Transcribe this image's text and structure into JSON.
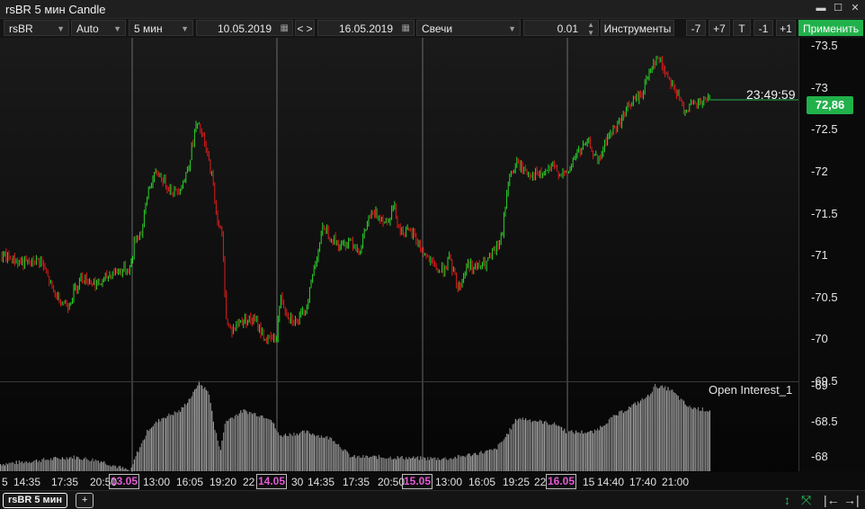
{
  "window": {
    "title": "rsBR 5 мин Candle",
    "buttons": [
      "▬",
      "☐",
      "✕"
    ]
  },
  "toolbar": {
    "instrument": "rsBR",
    "scale": "Auto",
    "timeframe": "5 мин",
    "date_from": "10.05.2019",
    "nav_prev": "<",
    "nav_next": ">",
    "date_to": "16.05.2019",
    "chart_type": "Свечи",
    "step": "0.01",
    "instruments_label": "Инструменты",
    "btn_m7": "-7",
    "btn_p7": "+7",
    "btn_t": "T",
    "btn_m1": "-1",
    "btn_p1": "+1",
    "apply_label": "Применить"
  },
  "overlay": {
    "last_price": "72,86",
    "timer": "23:49:59",
    "oi_label": "Open Interest_1"
  },
  "colors": {
    "up": "#2bd62b",
    "down": "#e21b1b",
    "badge": "#21b14b",
    "date_marker": "#e25ad6"
  },
  "tabs": {
    "active": "rsBR 5 мин",
    "add": "+"
  },
  "chart_data": {
    "type": "candlestick",
    "title": "rsBR 5 мин Candle",
    "y_ticks_price": [
      "-73.5",
      "-73",
      "-72.5",
      "-72",
      "-71.5",
      "-71",
      "-70.5",
      "-70",
      "-69.5",
      "-69",
      "-68.5",
      "-68"
    ],
    "price_ylim": [
      69.5,
      73.6
    ],
    "last_price": 72.86,
    "x_tick_labels": [
      {
        "text": "5",
        "date": false
      },
      {
        "text": "14:35",
        "date": false
      },
      {
        "text": "17:35",
        "date": false
      },
      {
        "text": "20:50",
        "date": false
      },
      {
        "text": "13.05",
        "date": true
      },
      {
        "text": "13:00",
        "date": false
      },
      {
        "text": "16:05",
        "date": false
      },
      {
        "text": "19:20",
        "date": false
      },
      {
        "text": "22",
        "date": false
      },
      {
        "text": "14.05",
        "date": true
      },
      {
        "text": "30",
        "date": false
      },
      {
        "text": "14:35",
        "date": false
      },
      {
        "text": "17:35",
        "date": false
      },
      {
        "text": "20:50",
        "date": false
      },
      {
        "text": "15.05",
        "date": true
      },
      {
        "text": "13:00",
        "date": false
      },
      {
        "text": "16:05",
        "date": false
      },
      {
        "text": "19:25",
        "date": false
      },
      {
        "text": "22",
        "date": false
      },
      {
        "text": "16.05",
        "date": true
      },
      {
        "text": "15",
        "date": false
      },
      {
        "text": "14:40",
        "date": false
      },
      {
        "text": "17:40",
        "date": false
      },
      {
        "text": "21:00",
        "date": false
      }
    ],
    "price_path": [
      [
        0,
        71.0
      ],
      [
        30,
        70.9
      ],
      [
        45,
        70.95
      ],
      [
        60,
        70.55
      ],
      [
        75,
        70.4
      ],
      [
        90,
        70.75
      ],
      [
        110,
        70.65
      ],
      [
        125,
        70.8
      ],
      [
        145,
        70.85
      ],
      [
        150,
        71.2
      ],
      [
        158,
        71.3
      ],
      [
        165,
        71.8
      ],
      [
        175,
        72.0
      ],
      [
        185,
        71.85
      ],
      [
        195,
        71.75
      ],
      [
        205,
        71.9
      ],
      [
        210,
        72.1
      ],
      [
        218,
        72.55
      ],
      [
        223,
        72.5
      ],
      [
        228,
        72.3
      ],
      [
        235,
        72.0
      ],
      [
        240,
        71.55
      ],
      [
        247,
        71.2
      ],
      [
        252,
        70.2
      ],
      [
        258,
        70.1
      ],
      [
        265,
        70.2
      ],
      [
        275,
        70.25
      ],
      [
        285,
        70.2
      ],
      [
        295,
        70.0
      ],
      [
        307,
        70.0
      ],
      [
        312,
        70.5
      ],
      [
        320,
        70.3
      ],
      [
        330,
        70.2
      ],
      [
        340,
        70.35
      ],
      [
        350,
        70.9
      ],
      [
        360,
        71.35
      ],
      [
        370,
        71.2
      ],
      [
        380,
        71.1
      ],
      [
        390,
        71.2
      ],
      [
        400,
        71.05
      ],
      [
        410,
        71.45
      ],
      [
        420,
        71.5
      ],
      [
        430,
        71.4
      ],
      [
        438,
        71.6
      ],
      [
        445,
        71.3
      ],
      [
        460,
        71.25
      ],
      [
        470,
        71.05
      ],
      [
        480,
        70.9
      ],
      [
        490,
        70.8
      ],
      [
        500,
        70.95
      ],
      [
        510,
        70.6
      ],
      [
        520,
        70.9
      ],
      [
        530,
        70.85
      ],
      [
        540,
        70.9
      ],
      [
        550,
        71.05
      ],
      [
        558,
        71.2
      ],
      [
        565,
        71.9
      ],
      [
        575,
        72.1
      ],
      [
        585,
        72.0
      ],
      [
        600,
        71.95
      ],
      [
        615,
        72.05
      ],
      [
        630,
        71.95
      ],
      [
        640,
        72.2
      ],
      [
        655,
        72.35
      ],
      [
        665,
        72.1
      ],
      [
        675,
        72.4
      ],
      [
        690,
        72.6
      ],
      [
        700,
        72.8
      ],
      [
        715,
        72.95
      ],
      [
        725,
        73.3
      ],
      [
        732,
        73.35
      ],
      [
        740,
        73.2
      ],
      [
        750,
        73.0
      ],
      [
        760,
        72.75
      ],
      [
        775,
        72.8
      ],
      [
        790,
        72.86
      ]
    ],
    "oi_path": [
      [
        0,
        67.9
      ],
      [
        40,
        67.95
      ],
      [
        80,
        68.0
      ],
      [
        110,
        67.95
      ],
      [
        145,
        67.8
      ],
      [
        150,
        68.0
      ],
      [
        165,
        68.4
      ],
      [
        180,
        68.55
      ],
      [
        200,
        68.65
      ],
      [
        215,
        68.9
      ],
      [
        220,
        69.05
      ],
      [
        232,
        68.9
      ],
      [
        238,
        68.4
      ],
      [
        245,
        68.1
      ],
      [
        250,
        68.5
      ],
      [
        270,
        68.65
      ],
      [
        300,
        68.55
      ],
      [
        310,
        68.3
      ],
      [
        340,
        68.35
      ],
      [
        355,
        68.3
      ],
      [
        370,
        68.25
      ],
      [
        390,
        68.0
      ],
      [
        420,
        68.0
      ],
      [
        470,
        67.98
      ],
      [
        500,
        67.98
      ],
      [
        550,
        68.1
      ],
      [
        560,
        68.25
      ],
      [
        575,
        68.55
      ],
      [
        600,
        68.5
      ],
      [
        620,
        68.45
      ],
      [
        630,
        68.35
      ],
      [
        660,
        68.35
      ],
      [
        680,
        68.55
      ],
      [
        700,
        68.7
      ],
      [
        720,
        68.85
      ],
      [
        728,
        69.0
      ],
      [
        745,
        68.95
      ],
      [
        765,
        68.7
      ],
      [
        790,
        68.65
      ]
    ],
    "oi_ylim": [
      67.8,
      69.05
    ],
    "grid_x_separators": [
      147,
      308,
      470,
      631
    ]
  }
}
